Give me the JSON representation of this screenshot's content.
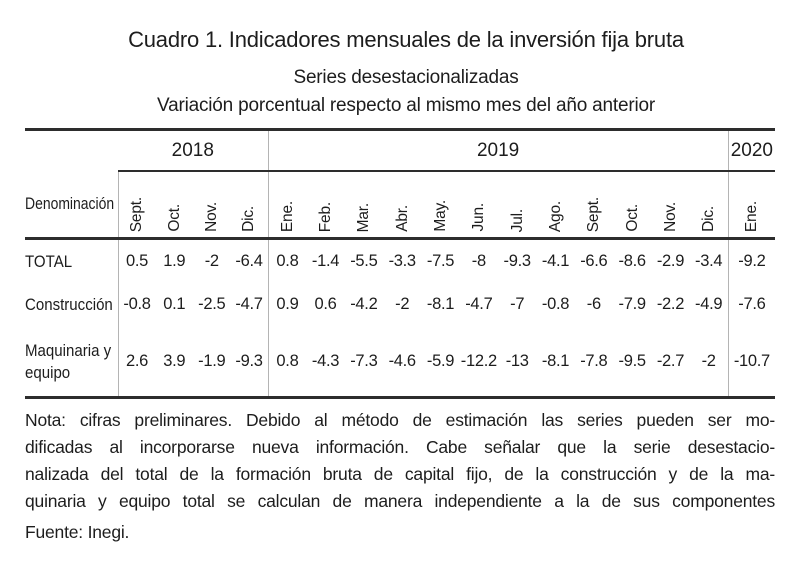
{
  "title": "Cuadro 1. Indicadores mensuales de la inversión fija bruta",
  "subtitles": {
    "line1": "Series desestacionalizadas",
    "line2": "Variación porcentual respecto al mismo mes del año anterior"
  },
  "table": {
    "denomination_header": "Denominación",
    "year_groups": [
      {
        "year": "2018",
        "months": [
          "Sept.",
          "Oct.",
          "Nov.",
          "Dic."
        ]
      },
      {
        "year": "2019",
        "months": [
          "Ene.",
          "Feb.",
          "Mar.",
          "Abr.",
          "May.",
          "Jun.",
          "Jul.",
          "Ago.",
          "Sept.",
          "Oct.",
          "Nov.",
          "Dic."
        ]
      },
      {
        "year": "2020",
        "months": [
          "Ene."
        ]
      }
    ],
    "rows": [
      {
        "label": "TOTAL",
        "values": [
          "0.5",
          "1.9",
          "-2",
          "-6.4",
          "0.8",
          "-1.4",
          "-5.5",
          "-3.3",
          "-7.5",
          "-8",
          "-9.3",
          "-4.1",
          "-6.6",
          "-8.6",
          "-2.9",
          "-3.4",
          "-9.2"
        ]
      },
      {
        "label": "Construcción",
        "values": [
          "-0.8",
          "0.1",
          "-2.5",
          "-4.7",
          "0.9",
          "0.6",
          "-4.2",
          "-2",
          "-8.1",
          "-4.7",
          "-7",
          "-0.8",
          "-6",
          "-7.9",
          "-2.2",
          "-4.9",
          "-7.6"
        ]
      },
      {
        "label": "Maquinaria y equipo",
        "values": [
          "2.6",
          "3.9",
          "-1.9",
          "-9.3",
          "0.8",
          "-4.3",
          "-7.3",
          "-4.6",
          "-5.9",
          "-12.2",
          "-13",
          "-8.1",
          "-7.8",
          "-9.5",
          "-2.7",
          "-2",
          "-10.7"
        ]
      }
    ]
  },
  "note_lines": [
    "Nota: cifras preliminares. Debido al método de estimación las series pueden ser mo-",
    "dificadas al incorporarse nueva información. Cabe señalar que la serie desestacio-",
    "nalizada del total de la formación bruta de capital fijo, de la construcción y de la ma-",
    "quinaria y equipo total se calculan de manera independiente a la de sus componentes"
  ],
  "fuente": "Fuente: Inegi.",
  "colors": {
    "text": "#1d1d1d",
    "rule": "#2d2d2d",
    "grid": "#b4b4b4",
    "background": "#ffffff"
  }
}
